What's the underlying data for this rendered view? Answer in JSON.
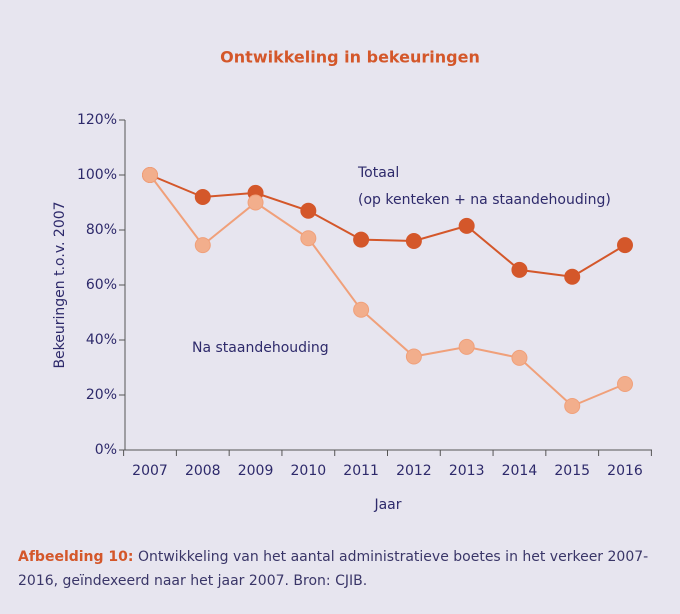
{
  "chart_data": {
    "type": "line",
    "title": "Ontwikkeling in bekeuringen",
    "x_label": "Jaar",
    "y_label": "Bekeuringen t.o.v. 2007",
    "categories": [
      "2007",
      "2008",
      "2009",
      "2010",
      "2011",
      "2012",
      "2013",
      "2014",
      "2015",
      "2016"
    ],
    "series": [
      {
        "name": "Totaal",
        "color": "#d4572a",
        "marker_color": "#d4572a",
        "values": [
          100,
          92,
          93.5,
          87,
          76.5,
          76,
          81.5,
          65.5,
          63,
          74.5
        ]
      },
      {
        "name": "Na staandehouding",
        "color": "#f0a07a",
        "marker_color": "#f2ae8c",
        "values": [
          100,
          74.5,
          90,
          77,
          51,
          34,
          37.5,
          33.5,
          16,
          24
        ]
      }
    ],
    "annotations": [
      "(op kenteken + na staandehouding)"
    ],
    "ylim": [
      0,
      120
    ],
    "yticks": [
      {
        "value": 0,
        "label": "0%"
      },
      {
        "value": 20,
        "label": "20%"
      },
      {
        "value": 40,
        "label": "40%"
      },
      {
        "value": 60,
        "label": "60%"
      },
      {
        "value": 80,
        "label": "80%"
      },
      {
        "value": 100,
        "label": "100%"
      },
      {
        "value": 120,
        "label": "120%"
      }
    ]
  },
  "caption": {
    "label": "Afbeelding 10:",
    "text": "Ontwikkeling van het aantal administratieve boetes in het verkeer 2007-2016, geïndexeerd naar het jaar 2007. Bron: CJIB."
  }
}
